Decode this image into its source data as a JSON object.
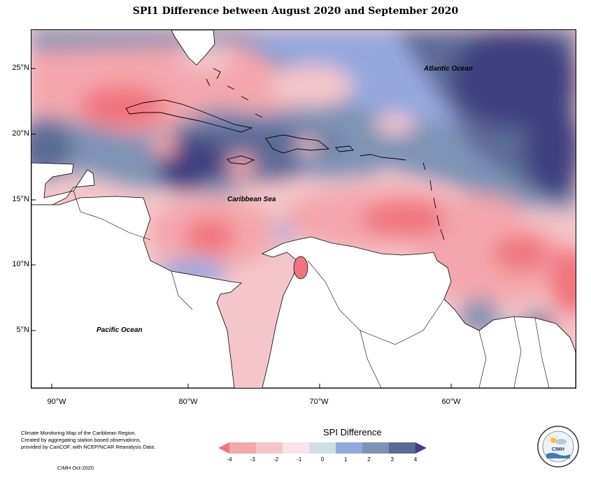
{
  "title": "SPI1 Difference between August 2020 and September 2020",
  "map": {
    "y_ticks": [
      "25°N",
      "20°N",
      "15°N",
      "10°N",
      "5°N"
    ],
    "x_ticks": [
      "90°W",
      "80°W",
      "70°W",
      "60°W"
    ],
    "labels": {
      "atlantic": "Atlantic Ocean",
      "caribbean": "Caribbean Sea",
      "pacific": "Pacific Ocean"
    }
  },
  "legend": {
    "title": "SPI Difference",
    "ticks": [
      "-4",
      "-3",
      "-2",
      "-1",
      "0",
      "1",
      "2",
      "3",
      "4"
    ],
    "colors": [
      "#f1737c",
      "#f3a6ac",
      "#f4c6cb",
      "#f8e4e6",
      "#cfdfe5",
      "#95a8de",
      "#7e93b5",
      "#5c6a96",
      "#3f3f7f"
    ]
  },
  "footnote": {
    "line1": "Climate Monitoring Map of the Caribbean Region.",
    "line2": "Created by aggregating station based observations,",
    "line3": "provided by CariCOF, with NCEP/NCAR Reanalysis Data.",
    "credit": "CIMH Oct-2020"
  },
  "logo": {
    "text": "CIMH"
  }
}
